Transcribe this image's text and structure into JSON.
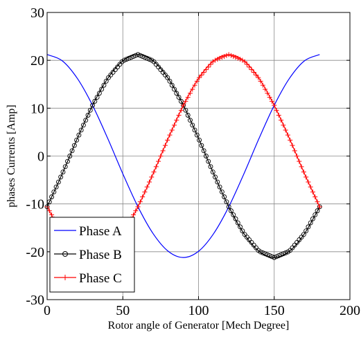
{
  "chart_data": {
    "type": "line",
    "title": "",
    "xlabel": "Rotor angle of Generator [Mech Degree]",
    "ylabel": "phases Currents  [Amp]",
    "xlim": [
      0,
      200
    ],
    "ylim": [
      -30,
      30
    ],
    "xticks": [
      0,
      50,
      100,
      150,
      200
    ],
    "yticks": [
      -30,
      -20,
      -10,
      0,
      10,
      20,
      30
    ],
    "xtick_labels": [
      "0",
      "50",
      "100",
      "150",
      "200"
    ],
    "ytick_labels": [
      "-30",
      "-20",
      "-10",
      "0",
      "10",
      "20",
      "30"
    ],
    "grid": true,
    "legend_position": "bottom-left",
    "x": [
      0,
      10,
      20,
      30,
      40,
      50,
      60,
      70,
      80,
      90,
      100,
      110,
      120,
      130,
      140,
      150,
      160,
      170,
      180
    ],
    "series": [
      {
        "name": "Phase A",
        "color": "#0000ff",
        "marker": "none",
        "values": [
          21.2,
          19.9,
          16.2,
          10.6,
          3.7,
          -3.7,
          -10.6,
          -16.2,
          -19.9,
          -21.2,
          -19.9,
          -16.2,
          -10.6,
          -3.7,
          3.7,
          10.6,
          16.2,
          19.9,
          21.2
        ]
      },
      {
        "name": "Phase B",
        "color": "#000000",
        "marker": "circle",
        "values": [
          -10.6,
          -3.7,
          3.7,
          10.6,
          16.2,
          19.9,
          21.2,
          19.9,
          16.2,
          10.6,
          3.7,
          -3.7,
          -10.6,
          -16.2,
          -19.9,
          -21.2,
          -19.9,
          -16.2,
          -10.6
        ]
      },
      {
        "name": "Phase C",
        "color": "#ff0000",
        "marker": "plus",
        "values": [
          -10.6,
          -16.2,
          -19.9,
          -21.2,
          -19.9,
          -16.2,
          -10.6,
          -3.7,
          3.7,
          10.6,
          16.2,
          19.9,
          21.2,
          19.9,
          16.2,
          10.6,
          3.7,
          -3.7,
          -10.6
        ]
      }
    ]
  }
}
